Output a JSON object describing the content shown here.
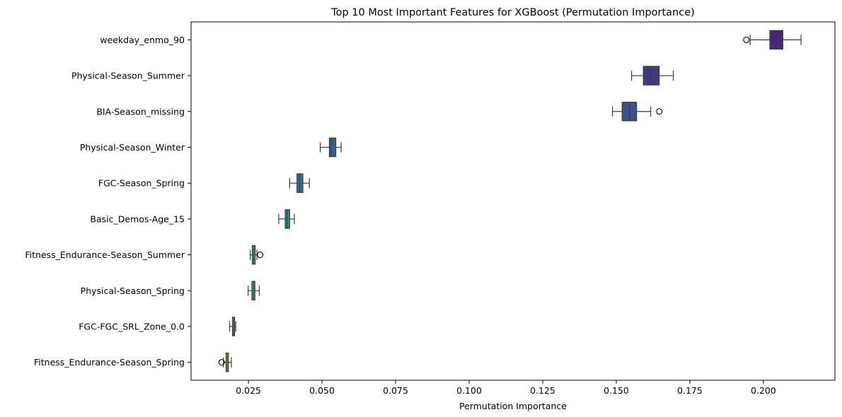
{
  "chart_data": {
    "type": "box",
    "title": "Top 10 Most Important Features for XGBoost (Permutation Importance)",
    "xlabel": "Permutation Importance",
    "ylabel": "",
    "xlim": [
      0.0055,
      0.2243
    ],
    "xticks": [
      0.025,
      0.05,
      0.075,
      0.1,
      0.125,
      0.15,
      0.175,
      0.2
    ],
    "xtick_labels": [
      "0.025",
      "0.050",
      "0.075",
      "0.100",
      "0.125",
      "0.150",
      "0.175",
      "0.200"
    ],
    "grid": false,
    "categories": [
      "weekday_enmo_90",
      "Physical-Season_Summer",
      "BIA-Season_missing",
      "Physical-Season_Winter",
      "FGC-Season_Spring",
      "Basic_Demos-Age_15",
      "Fitness_Endurance-Season_Summer",
      "Physical-Season_Spring",
      "FGC-FGC_SRL_Zone_0.0",
      "Fitness_Endurance-Season_Spring"
    ],
    "boxes": [
      {
        "feature": "weekday_enmo_90",
        "whisker_low": 0.1955,
        "q1": 0.2022,
        "median": 0.2047,
        "q3": 0.2066,
        "whisker_high": 0.2128,
        "outliers": [
          0.1942
        ],
        "color": "#482576"
      },
      {
        "feature": "Physical-Season_Summer",
        "whisker_low": 0.1552,
        "q1": 0.1592,
        "median": 0.1617,
        "q3": 0.1646,
        "whisker_high": 0.1694,
        "outliers": [],
        "color": "#43397f"
      },
      {
        "feature": "BIA-Season_missing",
        "whisker_low": 0.1487,
        "q1": 0.152,
        "median": 0.1545,
        "q3": 0.1569,
        "whisker_high": 0.1617,
        "outliers": [
          0.1646
        ],
        "color": "#3b528b"
      },
      {
        "feature": "Physical-Season_Winter",
        "whisker_low": 0.0494,
        "q1": 0.0525,
        "median": 0.0531,
        "q3": 0.0547,
        "whisker_high": 0.0565,
        "outliers": [],
        "color": "#33638d"
      },
      {
        "feature": "FGC-Season_Spring",
        "whisker_low": 0.039,
        "q1": 0.0415,
        "median": 0.0424,
        "q3": 0.0435,
        "whisker_high": 0.0457,
        "outliers": [],
        "color": "#2c728e"
      },
      {
        "feature": "Basic_Demos-Age_15",
        "whisker_low": 0.0353,
        "q1": 0.0375,
        "median": 0.0381,
        "q3": 0.039,
        "whisker_high": 0.0406,
        "outliers": [],
        "color": "#21918c"
      },
      {
        "feature": "Fitness_Endurance-Season_Summer",
        "whisker_low": 0.0256,
        "q1": 0.0263,
        "median": 0.0268,
        "q3": 0.0273,
        "whisker_high": 0.0279,
        "outliers": [
          0.029
        ],
        "color": "#28ae80"
      },
      {
        "feature": "Physical-Season_Spring",
        "whisker_low": 0.0249,
        "q1": 0.0262,
        "median": 0.0267,
        "q3": 0.0272,
        "whisker_high": 0.0287,
        "outliers": [],
        "color": "#3aba76"
      },
      {
        "feature": "FGC-FGC_SRL_Zone_0.0",
        "whisker_low": 0.0186,
        "q1": 0.0196,
        "median": 0.02,
        "q3": 0.0203,
        "whisker_high": 0.0207,
        "outliers": [],
        "color": "#5ec962"
      },
      {
        "feature": "Fitness_Endurance-Season_Spring",
        "whisker_low": 0.0165,
        "q1": 0.0174,
        "median": 0.0178,
        "q3": 0.0182,
        "whisker_high": 0.0192,
        "outliers": [
          0.0159
        ],
        "color": "#addc30"
      }
    ]
  }
}
